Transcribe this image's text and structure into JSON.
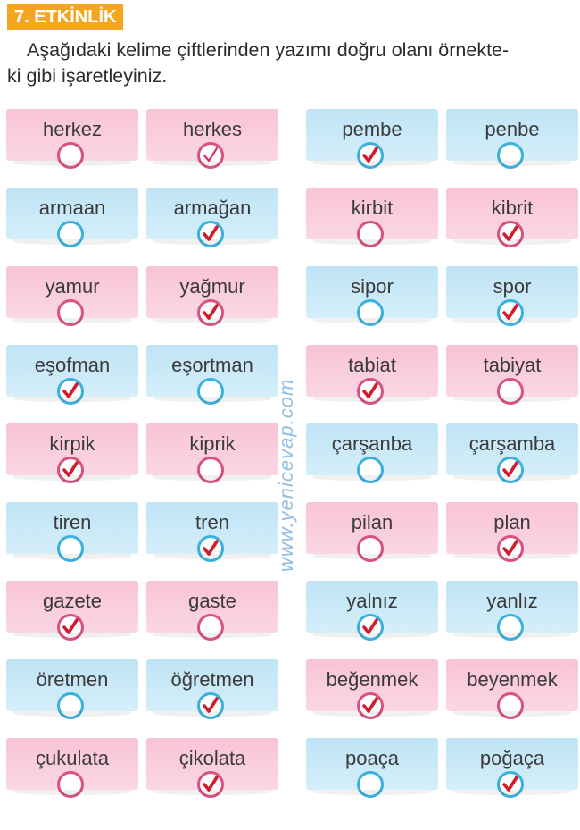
{
  "header": {
    "badge": "7. ETKİNLİK"
  },
  "instructions": {
    "line1": "Aşağıdaki kelime çiftlerinden yazımı doğru olanı örnekte-",
    "line2": "ki gibi işaretleyiniz."
  },
  "watermark": "www.yenicevap.com",
  "colors": {
    "pink": "#f8c3d7",
    "blue": "#bfe4f5",
    "check_red": "#d21b2c",
    "check_pink": "#d5316f",
    "ring_blue": "#3ab0df",
    "ring_pink": "#d9517f"
  },
  "rows": [
    {
      "left": [
        {
          "word": "herkez",
          "bg": "pink",
          "checked": false
        },
        {
          "word": "herkes",
          "bg": "pink",
          "checked": true,
          "example": true
        }
      ],
      "right": [
        {
          "word": "pembe",
          "bg": "blue",
          "checked": true
        },
        {
          "word": "penbe",
          "bg": "blue",
          "checked": false
        }
      ]
    },
    {
      "left": [
        {
          "word": "armaan",
          "bg": "blue",
          "checked": false
        },
        {
          "word": "armağan",
          "bg": "blue",
          "checked": true
        }
      ],
      "right": [
        {
          "word": "kirbit",
          "bg": "pink",
          "checked": false
        },
        {
          "word": "kibrit",
          "bg": "pink",
          "checked": true
        }
      ]
    },
    {
      "left": [
        {
          "word": "yamur",
          "bg": "pink",
          "checked": false
        },
        {
          "word": "yağmur",
          "bg": "pink",
          "checked": true
        }
      ],
      "right": [
        {
          "word": "sipor",
          "bg": "blue",
          "checked": false
        },
        {
          "word": "spor",
          "bg": "blue",
          "checked": true
        }
      ]
    },
    {
      "left": [
        {
          "word": "eşofman",
          "bg": "blue",
          "checked": true
        },
        {
          "word": "eşortman",
          "bg": "blue",
          "checked": false
        }
      ],
      "right": [
        {
          "word": "tabiat",
          "bg": "pink",
          "checked": true
        },
        {
          "word": "tabiyat",
          "bg": "pink",
          "checked": false
        }
      ]
    },
    {
      "left": [
        {
          "word": "kirpik",
          "bg": "pink",
          "checked": true
        },
        {
          "word": "kiprik",
          "bg": "pink",
          "checked": false
        }
      ],
      "right": [
        {
          "word": "çarşanba",
          "bg": "blue",
          "checked": false
        },
        {
          "word": "çarşamba",
          "bg": "blue",
          "checked": true
        }
      ]
    },
    {
      "left": [
        {
          "word": "tiren",
          "bg": "blue",
          "checked": false
        },
        {
          "word": "tren",
          "bg": "blue",
          "checked": true
        }
      ],
      "right": [
        {
          "word": "pilan",
          "bg": "pink",
          "checked": false
        },
        {
          "word": "plan",
          "bg": "pink",
          "checked": true
        }
      ]
    },
    {
      "left": [
        {
          "word": "gazete",
          "bg": "pink",
          "checked": true
        },
        {
          "word": "gaste",
          "bg": "pink",
          "checked": false
        }
      ],
      "right": [
        {
          "word": "yalnız",
          "bg": "blue",
          "checked": true
        },
        {
          "word": "yanlız",
          "bg": "blue",
          "checked": false
        }
      ]
    },
    {
      "left": [
        {
          "word": "öretmen",
          "bg": "blue",
          "checked": false
        },
        {
          "word": "öğretmen",
          "bg": "blue",
          "checked": true
        }
      ],
      "right": [
        {
          "word": "beğenmek",
          "bg": "pink",
          "checked": true
        },
        {
          "word": "beyenmek",
          "bg": "pink",
          "checked": false
        }
      ]
    },
    {
      "left": [
        {
          "word": "çukulata",
          "bg": "pink",
          "checked": false
        },
        {
          "word": "çikolata",
          "bg": "pink",
          "checked": true
        }
      ],
      "right": [
        {
          "word": "poaça",
          "bg": "blue",
          "checked": false
        },
        {
          "word": "poğaça",
          "bg": "blue",
          "checked": true
        }
      ]
    }
  ]
}
